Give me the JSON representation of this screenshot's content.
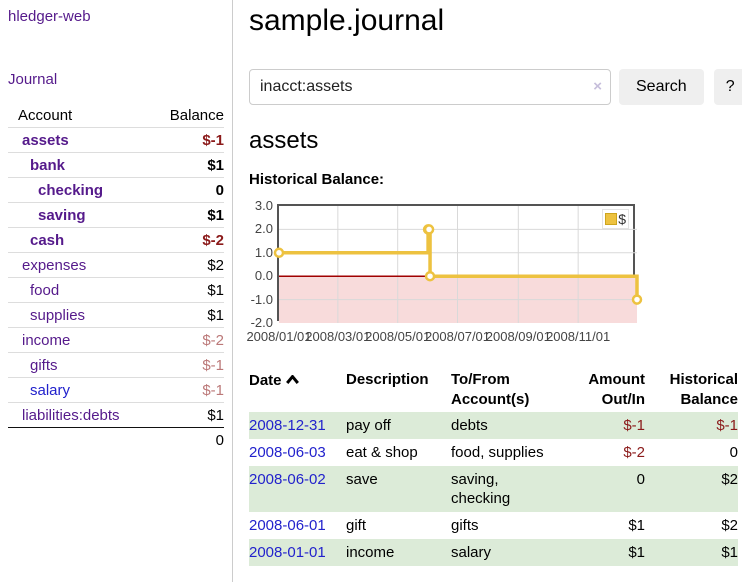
{
  "sidebar": {
    "brand": "hledger-web",
    "journal_label": "Journal",
    "accounts_table": {
      "headers": {
        "account": "Account",
        "balance": "Balance"
      },
      "rows": [
        {
          "name": "assets",
          "depth": 1,
          "bold": true,
          "balance": "$-1",
          "balance_style": "neg-strong",
          "link_style": "visited"
        },
        {
          "name": "bank",
          "depth": 2,
          "bold": true,
          "balance": "$1",
          "balance_style": "pos",
          "link_style": "visited"
        },
        {
          "name": "checking",
          "depth": 3,
          "bold": true,
          "balance": "0",
          "balance_style": "pos",
          "link_style": "visited"
        },
        {
          "name": "saving",
          "depth": 3,
          "bold": true,
          "balance": "$1",
          "balance_style": "pos",
          "link_style": "visited"
        },
        {
          "name": "cash",
          "depth": 2,
          "bold": true,
          "balance": "$-2",
          "balance_style": "neg-strong",
          "link_style": "visited"
        },
        {
          "name": "expenses",
          "depth": 1,
          "bold": false,
          "balance": "$2",
          "balance_style": "pos",
          "link_style": "visited"
        },
        {
          "name": "food",
          "depth": 2,
          "bold": false,
          "balance": "$1",
          "balance_style": "pos",
          "link_style": "visited"
        },
        {
          "name": "supplies",
          "depth": 2,
          "bold": false,
          "balance": "$1",
          "balance_style": "pos",
          "link_style": "visited"
        },
        {
          "name": "income",
          "depth": 1,
          "bold": false,
          "balance": "$-2",
          "balance_style": "neg-muted",
          "link_style": "visited"
        },
        {
          "name": "gifts",
          "depth": 2,
          "bold": false,
          "balance": "$-1",
          "balance_style": "neg-muted",
          "link_style": "visited"
        },
        {
          "name": "salary",
          "depth": 2,
          "bold": false,
          "balance": "$-1",
          "balance_style": "neg-muted",
          "link_style": "unvisited"
        },
        {
          "name": "liabilities:debts",
          "depth": 1,
          "bold": false,
          "balance": "$1",
          "balance_style": "pos",
          "link_style": "visited"
        }
      ],
      "total": "0"
    }
  },
  "header": {
    "title": "sample.journal"
  },
  "search": {
    "value": "inacct:assets",
    "clear_icon": "×",
    "button_label": "Search",
    "help_label": "?"
  },
  "account_page": {
    "title": "assets",
    "chart_label": "Historical Balance:"
  },
  "chart_data": {
    "type": "line",
    "step": true,
    "title": "Historical Balance",
    "series": [
      {
        "name": "$",
        "color": "#edc240",
        "points": [
          [
            "2008-01-01",
            1
          ],
          [
            "2008-06-01",
            2
          ],
          [
            "2008-06-02",
            2
          ],
          [
            "2008-06-03",
            0
          ],
          [
            "2008-12-31",
            -1
          ]
        ]
      }
    ],
    "x_range": [
      "2008-01-01",
      "2008-12-31"
    ],
    "x_ticks": [
      "2008/01/01",
      "2008/03/01",
      "2008/05/01",
      "2008/07/01",
      "2008/09/01",
      "2008/11/01"
    ],
    "y_ticks": [
      "3.0",
      "2.0",
      "1.0",
      "0.0",
      "-1.0",
      "-2.0"
    ],
    "ylim": [
      -2,
      3
    ],
    "grid": true,
    "legend_position": "top-right",
    "colors": {
      "line": "#edc240",
      "marker_fill": "#ffffff",
      "negative_region": "#f8dbdb",
      "zero_line": "#a00000",
      "gridline": "#d9d9d9",
      "border": "#545454"
    }
  },
  "register": {
    "headers": {
      "date": "Date",
      "description": "Description",
      "account_line1": "To/From",
      "account_line2": "Account(s)",
      "amount_line1": "Amount",
      "amount_line2": "Out/In",
      "balance_line1": "Historical",
      "balance_line2": "Balance"
    },
    "rows": [
      {
        "date": "2008-12-31",
        "description": "pay off",
        "accounts": "debts",
        "amount": "$-1",
        "amount_neg": true,
        "balance": "$-1",
        "balance_neg": true
      },
      {
        "date": "2008-06-03",
        "description": "eat & shop",
        "accounts": "food, supplies",
        "amount": "$-2",
        "amount_neg": true,
        "balance": "0",
        "balance_neg": false
      },
      {
        "date": "2008-06-02",
        "description": "save",
        "accounts": "saving, checking",
        "amount": "0",
        "amount_neg": false,
        "balance": "$2",
        "balance_neg": false
      },
      {
        "date": "2008-06-01",
        "description": "gift",
        "accounts": "gifts",
        "amount": "$1",
        "amount_neg": false,
        "balance": "$2",
        "balance_neg": false
      },
      {
        "date": "2008-01-01",
        "description": "income",
        "accounts": "salary",
        "amount": "$1",
        "amount_neg": false,
        "balance": "$1",
        "balance_neg": false
      }
    ]
  }
}
